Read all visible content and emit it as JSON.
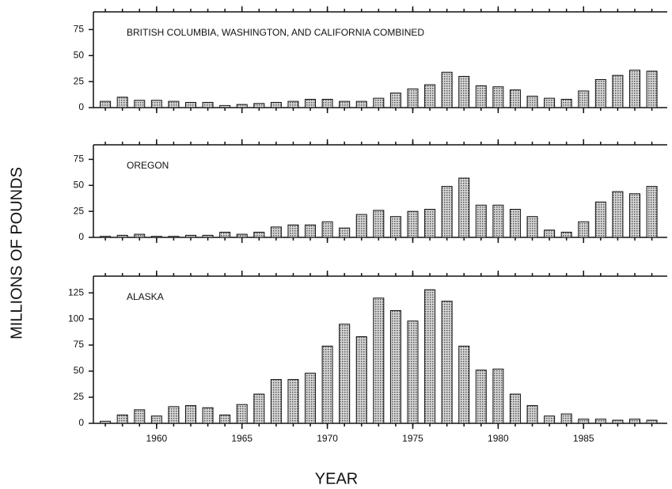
{
  "ylabel": "MILLIONS OF POUNDS",
  "chart_data": [
    {
      "type": "bar",
      "annotation": "BRITISH COLUMBIA, WASHINGTON, AND CALIFORNIA COMBINED",
      "x": [
        1957,
        1958,
        1959,
        1960,
        1961,
        1962,
        1963,
        1964,
        1965,
        1966,
        1967,
        1968,
        1969,
        1970,
        1971,
        1972,
        1973,
        1974,
        1975,
        1976,
        1977,
        1978,
        1979,
        1980,
        1981,
        1982,
        1983,
        1984,
        1985,
        1986,
        1987,
        1988,
        1989
      ],
      "values": [
        6,
        10,
        7,
        7,
        6,
        5,
        5,
        2,
        3,
        4,
        5,
        6,
        8,
        8,
        6,
        6,
        9,
        14,
        18,
        22,
        34,
        30,
        21,
        20,
        17,
        11,
        9,
        8,
        16,
        27,
        31,
        36,
        35
      ],
      "xlim": [
        1956.3,
        1989.9
      ],
      "ylim": [
        0,
        92
      ],
      "yticks": [
        0,
        25,
        50,
        75
      ]
    },
    {
      "type": "bar",
      "annotation": "OREGON",
      "x": [
        1957,
        1958,
        1959,
        1960,
        1961,
        1962,
        1963,
        1964,
        1965,
        1966,
        1967,
        1968,
        1969,
        1970,
        1971,
        1972,
        1973,
        1974,
        1975,
        1976,
        1977,
        1978,
        1979,
        1980,
        1981,
        1982,
        1983,
        1984,
        1985,
        1986,
        1987,
        1988,
        1989
      ],
      "values": [
        1,
        2,
        3,
        1,
        1,
        2,
        2,
        5,
        3,
        5,
        10,
        12,
        12,
        15,
        9,
        22,
        26,
        20,
        25,
        27,
        49,
        57,
        31,
        31,
        27,
        20,
        7,
        5,
        15,
        34,
        44,
        42,
        49
      ],
      "xlim": [
        1956.3,
        1989.9
      ],
      "ylim": [
        0,
        89
      ],
      "yticks": [
        0,
        25,
        50,
        75
      ]
    },
    {
      "type": "bar",
      "annotation": "ALASKA",
      "x": [
        1957,
        1958,
        1959,
        1960,
        1961,
        1962,
        1963,
        1964,
        1965,
        1966,
        1967,
        1968,
        1969,
        1970,
        1971,
        1972,
        1973,
        1974,
        1975,
        1976,
        1977,
        1978,
        1979,
        1980,
        1981,
        1982,
        1983,
        1984,
        1985,
        1986,
        1987,
        1988,
        1989
      ],
      "values": [
        2,
        8,
        13,
        7,
        16,
        17,
        15,
        8,
        18,
        28,
        42,
        42,
        48,
        74,
        95,
        83,
        120,
        108,
        98,
        128,
        117,
        74,
        51,
        52,
        28,
        17,
        7,
        9,
        4,
        4,
        3,
        4,
        3
      ],
      "xlim": [
        1956.3,
        1989.9
      ],
      "ylim": [
        0,
        141
      ],
      "yticks": [
        0,
        25,
        50,
        75,
        100,
        125
      ],
      "xticks": [
        1960,
        1965,
        1970,
        1975,
        1980,
        1985
      ],
      "xlabel": "YEAR"
    }
  ]
}
